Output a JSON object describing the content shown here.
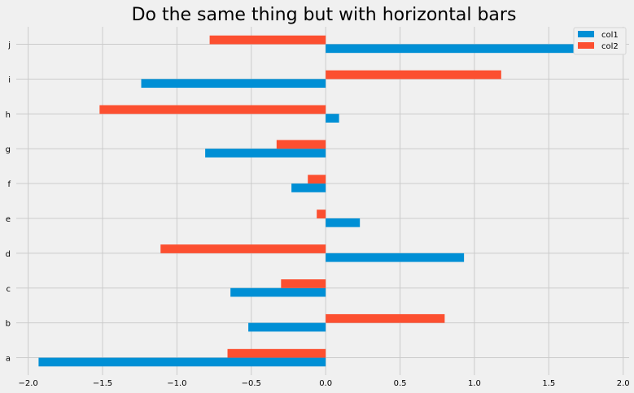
{
  "chart_data": {
    "type": "bar",
    "orientation": "horizontal",
    "title": "Do the same thing but with horizontal bars",
    "categories": [
      "a",
      "b",
      "c",
      "d",
      "e",
      "f",
      "g",
      "h",
      "i",
      "j"
    ],
    "series": [
      {
        "name": "col1",
        "color": "#008fd5",
        "values": [
          -1.93,
          -0.52,
          -0.64,
          0.93,
          0.23,
          -0.23,
          -0.81,
          0.09,
          -1.24,
          1.84
        ]
      },
      {
        "name": "col2",
        "color": "#fc4f30",
        "values": [
          -0.66,
          0.8,
          -0.3,
          -1.11,
          -0.06,
          -0.12,
          -0.33,
          -1.52,
          1.18,
          -0.78
        ]
      }
    ],
    "xlim": [
      -2.08,
      2.04
    ],
    "xticks": [
      -2.0,
      -1.5,
      -1.0,
      -0.5,
      0.0,
      0.5,
      1.0,
      1.5,
      2.0
    ],
    "xtick_labels": [
      "−2.0",
      "−1.5",
      "−1.0",
      "−0.5",
      "0.0",
      "0.5",
      "1.0",
      "1.5",
      "2.0"
    ],
    "xlabel": "",
    "ylabel": "",
    "grid": true,
    "legend_position": "top-right",
    "background": "#f0f0f0",
    "grid_color": "#cbcbcb"
  }
}
